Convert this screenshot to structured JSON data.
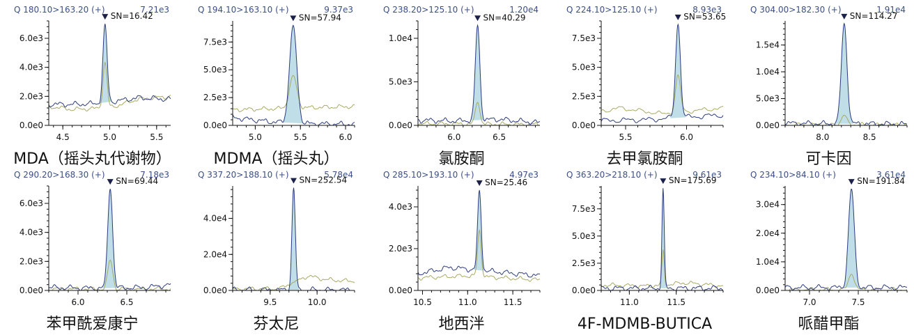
{
  "colors": {
    "trace": "#2a3a7e",
    "ion": "#a7aa62",
    "fill": "#a9d3df",
    "axis": "#111111",
    "header": "#3a4f86"
  },
  "chart_data": [
    {
      "type": "line",
      "compound": "MDA（摇头丸代谢物）",
      "transition": "Q 180.10>163.20 (+)",
      "max_intensity": "7.21e3",
      "sn_label": "SN=16.42",
      "xlim": [
        4.35,
        5.65
      ],
      "ylim": [
        0,
        7200
      ],
      "xticks": [
        4.5,
        5.0,
        5.5
      ],
      "xtick_labels": [
        "4.5",
        "5.0",
        "5.5"
      ],
      "yticks": [
        0,
        2000,
        4000,
        6000
      ],
      "ytick_labels": [
        "0.0e0",
        "2.0e3",
        "4.0e3",
        "6.0e3"
      ],
      "peak": {
        "rt": 4.95,
        "height": 7000,
        "width": 0.022,
        "ion_ratio": 0.62
      },
      "baseline": [
        [
          4.35,
          1450
        ],
        [
          4.6,
          1450
        ],
        [
          4.85,
          1500
        ],
        [
          5.1,
          1700
        ],
        [
          5.3,
          1900
        ],
        [
          5.65,
          1800
        ]
      ],
      "ion_baseline": [
        [
          4.35,
          1300
        ],
        [
          4.6,
          1100
        ],
        [
          5.0,
          1200
        ],
        [
          5.3,
          1800
        ],
        [
          5.65,
          2000
        ]
      ]
    },
    {
      "type": "line",
      "compound": "MDMA（摇头丸）",
      "transition": "Q 194.10>163.10 (+)",
      "max_intensity": "9.37e3",
      "sn_label": "SN=57.94",
      "xlim": [
        4.75,
        6.1
      ],
      "ylim": [
        0,
        9400
      ],
      "xticks": [
        5.0,
        5.5,
        6.0
      ],
      "xtick_labels": [
        "5.0",
        "5.5",
        "6.0"
      ],
      "yticks": [
        0,
        2500,
        5000,
        7500
      ],
      "ytick_labels": [
        "0.0e0",
        "2.5e3",
        "5.0e3",
        "7.5e3"
      ],
      "peak": {
        "rt": 5.42,
        "height": 9000,
        "width": 0.04,
        "ion_ratio": 0.5
      },
      "baseline": [
        [
          4.75,
          700
        ],
        [
          5.2,
          300
        ],
        [
          5.6,
          150
        ],
        [
          6.1,
          100
        ]
      ],
      "ion_baseline": [
        [
          4.75,
          1400
        ],
        [
          5.2,
          1500
        ],
        [
          5.6,
          1600
        ],
        [
          6.1,
          1700
        ]
      ]
    },
    {
      "type": "line",
      "compound": "氯胺酮",
      "transition": "Q 238.20>125.10 (+)",
      "max_intensity": "1.20e4",
      "sn_label": "SN=40.29",
      "xlim": [
        5.6,
        6.95
      ],
      "ylim": [
        0,
        12000
      ],
      "xticks": [
        6.0,
        6.5
      ],
      "xtick_labels": [
        "6.0",
        "6.5"
      ],
      "yticks": [
        0,
        5000,
        10000
      ],
      "ytick_labels": [
        "0.0e0",
        "5.0e3",
        "1.0e4"
      ],
      "peak": {
        "rt": 6.26,
        "height": 11500,
        "width": 0.025,
        "ion_ratio": 0.23
      },
      "baseline": [
        [
          5.6,
          600
        ],
        [
          6.0,
          500
        ],
        [
          6.5,
          700
        ],
        [
          6.95,
          300
        ]
      ],
      "ion_baseline": [
        [
          5.6,
          200
        ],
        [
          6.95,
          100
        ]
      ]
    },
    {
      "type": "line",
      "compound": "去甲氯胺酮",
      "transition": "Q 224.10>125.10 (+)",
      "max_intensity": "8.93e3",
      "sn_label": "SN=53.65",
      "xlim": [
        5.3,
        6.3
      ],
      "ylim": [
        0,
        9000
      ],
      "xticks": [
        5.5,
        6.0
      ],
      "xtick_labels": [
        "5.5",
        "6.0"
      ],
      "yticks": [
        0,
        2500,
        5000,
        7500
      ],
      "ytick_labels": [
        "0.0e0",
        "2.5e3",
        "5.0e3",
        "7.5e3"
      ],
      "peak": {
        "rt": 5.93,
        "height": 8700,
        "width": 0.02,
        "ion_ratio": 0.5
      },
      "baseline": [
        [
          5.3,
          400
        ],
        [
          5.7,
          500
        ],
        [
          6.0,
          700
        ],
        [
          6.3,
          900
        ]
      ],
      "ion_baseline": [
        [
          5.3,
          1200
        ],
        [
          5.45,
          1500
        ],
        [
          5.8,
          1000
        ],
        [
          6.3,
          1500
        ]
      ]
    },
    {
      "type": "line",
      "compound": "可卡因",
      "transition": "Q 304.00>182.30 (+)",
      "max_intensity": "1.91e4",
      "sn_label": "SN=114.27",
      "xlim": [
        7.6,
        8.9
      ],
      "ylim": [
        0,
        19500
      ],
      "xticks": [
        8.0,
        8.5
      ],
      "xtick_labels": [
        "8.0",
        "8.5"
      ],
      "yticks": [
        0,
        5000,
        10000,
        15000
      ],
      "ytick_labels": [
        "0.0e0",
        "5.0e3",
        "1.0e4",
        "1.5e4"
      ],
      "peak": {
        "rt": 8.23,
        "height": 19000,
        "width": 0.03,
        "ion_ratio": 0.1
      },
      "baseline": [
        [
          7.6,
          400
        ],
        [
          8.1,
          300
        ],
        [
          8.5,
          300
        ],
        [
          8.9,
          200
        ]
      ],
      "ion_baseline": [
        [
          7.6,
          100
        ],
        [
          8.9,
          100
        ]
      ]
    },
    {
      "type": "line",
      "compound": "苯甲酰爱康宁",
      "transition": "Q 290.20>168.30 (+)",
      "max_intensity": "7.18e3",
      "sn_label": "SN=69.44",
      "xlim": [
        5.7,
        6.95
      ],
      "ylim": [
        0,
        7200
      ],
      "xticks": [
        6.0,
        6.5
      ],
      "xtick_labels": [
        "6.0",
        "6.5"
      ],
      "yticks": [
        0,
        2000,
        4000,
        6000
      ],
      "ytick_labels": [
        "0.0e0",
        "2.0e3",
        "4.0e3",
        "6.0e3"
      ],
      "peak": {
        "rt": 6.33,
        "height": 7000,
        "width": 0.025,
        "ion_ratio": 0.3
      },
      "baseline": [
        [
          5.7,
          200
        ],
        [
          6.2,
          150
        ],
        [
          6.7,
          200
        ],
        [
          6.95,
          400
        ]
      ],
      "ion_baseline": [
        [
          5.7,
          100
        ],
        [
          6.95,
          100
        ]
      ]
    },
    {
      "type": "line",
      "compound": "芬太尼",
      "transition": "Q 337.20>188.10 (+)",
      "max_intensity": "5.78e4",
      "sn_label": "SN=252.54",
      "xlim": [
        9.1,
        10.4
      ],
      "ylim": [
        0,
        58000
      ],
      "xticks": [
        9.5,
        10.0
      ],
      "xtick_labels": [
        "9.5",
        "10.0"
      ],
      "yticks": [
        0,
        20000,
        40000
      ],
      "ytick_labels": [
        "0.0e0",
        "2.0e4",
        "4.0e4"
      ],
      "peak": {
        "rt": 9.75,
        "height": 57000,
        "width": 0.018,
        "ion_ratio": 0.08
      },
      "baseline": [
        [
          9.1,
          300
        ],
        [
          10.4,
          300
        ]
      ],
      "ion_baseline": [
        [
          9.1,
          800
        ],
        [
          9.6,
          900
        ],
        [
          9.9,
          8000
        ],
        [
          10.1,
          6000
        ],
        [
          10.4,
          5000
        ]
      ]
    },
    {
      "type": "line",
      "compound": "地西泮",
      "transition": "Q 285.10>193.10 (+)",
      "max_intensity": "4.97e3",
      "sn_label": "SN=25.46",
      "xlim": [
        10.45,
        11.8
      ],
      "ylim": [
        0,
        5000
      ],
      "xticks": [
        10.5,
        11.0,
        11.5
      ],
      "xtick_labels": [
        "10.5",
        "11.0",
        "11.5"
      ],
      "yticks": [
        0,
        2000,
        4000
      ],
      "ytick_labels": [
        "0.0e0",
        "2.0e3",
        "4.0e3"
      ],
      "peak": {
        "rt": 11.13,
        "height": 4800,
        "width": 0.02,
        "ion_ratio": 0.6
      },
      "baseline": [
        [
          10.45,
          800
        ],
        [
          10.8,
          1100
        ],
        [
          11.3,
          900
        ],
        [
          11.8,
          700
        ]
      ],
      "ion_baseline": [
        [
          10.45,
          600
        ],
        [
          11.0,
          700
        ],
        [
          11.8,
          500
        ]
      ]
    },
    {
      "type": "line",
      "compound": "4F-MDMB-BUTICA",
      "transition": "Q 363.20>218.10 (+)",
      "max_intensity": "9.61e3",
      "sn_label": "SN=175.69",
      "xlim": [
        10.7,
        12.0
      ],
      "ylim": [
        0,
        9600
      ],
      "xticks": [
        11.0,
        11.5
      ],
      "xtick_labels": [
        "11.0",
        "11.5"
      ],
      "yticks": [
        0,
        2500,
        5000,
        7500
      ],
      "ytick_labels": [
        "0.0e0",
        "2.5e3",
        "5.0e3",
        "7.5e3"
      ],
      "peak": {
        "rt": 11.36,
        "height": 9400,
        "width": 0.012,
        "ion_ratio": 0.4
      },
      "baseline": [
        [
          10.7,
          200
        ],
        [
          12.0,
          200
        ]
      ],
      "ion_baseline": [
        [
          10.7,
          500
        ],
        [
          11.2,
          400
        ],
        [
          11.6,
          700
        ],
        [
          12.0,
          400
        ]
      ]
    },
    {
      "type": "line",
      "compound": "哌醋甲酯",
      "transition": "Q 234.10>84.10 (+)",
      "max_intensity": "3.61e4",
      "sn_label": "SN=191.84",
      "xlim": [
        6.75,
        8.0
      ],
      "ylim": [
        0,
        36500
      ],
      "xticks": [
        7.0,
        7.5
      ],
      "xtick_labels": [
        "7.0",
        "7.5"
      ],
      "yticks": [
        0,
        10000,
        20000,
        30000
      ],
      "ytick_labels": [
        "0.0e0",
        "1.0e4",
        "2.0e4",
        "3.0e4"
      ],
      "peak": {
        "rt": 7.43,
        "height": 35500,
        "width": 0.03,
        "ion_ratio": 0.16
      },
      "baseline": [
        [
          6.75,
          1000
        ],
        [
          7.2,
          1000
        ],
        [
          7.7,
          1000
        ],
        [
          8.0,
          1000
        ]
      ],
      "ion_baseline": [
        [
          6.75,
          200
        ],
        [
          8.0,
          200
        ]
      ]
    }
  ]
}
